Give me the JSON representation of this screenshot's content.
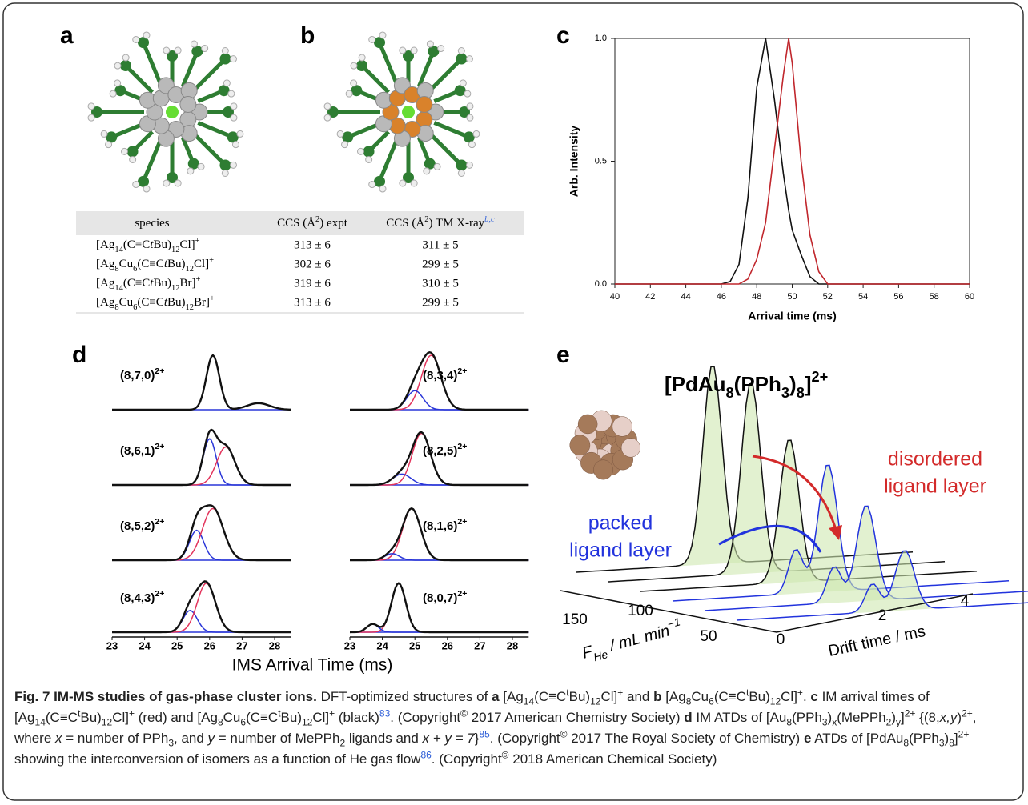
{
  "panel_labels": [
    "a",
    "b",
    "c",
    "d",
    "e"
  ],
  "table": {
    "header": [
      [
        {
          "t": "species"
        }
      ],
      [
        {
          "t": "CCS (Å"
        },
        {
          "t": "2",
          "f": "sup"
        },
        {
          "t": ") expt"
        }
      ],
      [
        {
          "t": "CCS (Å"
        },
        {
          "t": "2",
          "f": "sup"
        },
        {
          "t": ") TM X-ray"
        },
        {
          "t": "b,c",
          "f": "ref"
        }
      ]
    ],
    "rows": [
      {
        "species": [
          {
            "t": "[Ag"
          },
          {
            "t": "14",
            "f": "sub"
          },
          {
            "t": "(C≡C"
          },
          {
            "t": "t",
            "f": "i"
          },
          {
            "t": "Bu)"
          },
          {
            "t": "12",
            "f": "sub"
          },
          {
            "t": "Cl]"
          },
          {
            "t": "+",
            "f": "sup"
          }
        ],
        "expt": "313 ± 6",
        "xray": "311 ± 5"
      },
      {
        "species": [
          {
            "t": "[Ag"
          },
          {
            "t": "8",
            "f": "sub"
          },
          {
            "t": "Cu"
          },
          {
            "t": "6",
            "f": "sub"
          },
          {
            "t": "(C≡C"
          },
          {
            "t": "t",
            "f": "i"
          },
          {
            "t": "Bu)"
          },
          {
            "t": "12",
            "f": "sub"
          },
          {
            "t": "Cl]"
          },
          {
            "t": "+",
            "f": "sup"
          }
        ],
        "expt": "302 ± 6",
        "xray": "299 ± 5"
      },
      {
        "species": [
          {
            "t": "[Ag"
          },
          {
            "t": "14",
            "f": "sub"
          },
          {
            "t": "(C≡C"
          },
          {
            "t": "t",
            "f": "i"
          },
          {
            "t": "Bu)"
          },
          {
            "t": "12",
            "f": "sub"
          },
          {
            "t": "Br]"
          },
          {
            "t": "+",
            "f": "sup"
          }
        ],
        "expt": "319 ± 6",
        "xray": "310 ± 5"
      },
      {
        "species": [
          {
            "t": "[Ag"
          },
          {
            "t": "8",
            "f": "sub"
          },
          {
            "t": "Cu"
          },
          {
            "t": "6",
            "f": "sub"
          },
          {
            "t": "(C≡C"
          },
          {
            "t": "t",
            "f": "i"
          },
          {
            "t": "Bu)"
          },
          {
            "t": "12",
            "f": "sub"
          },
          {
            "t": "Br]"
          },
          {
            "t": "+",
            "f": "sup"
          }
        ],
        "expt": "313 ± 6",
        "xray": "299 ± 5"
      }
    ]
  },
  "chart_data": {
    "type": "line",
    "xlabel": "Arrival time (ms)",
    "ylabel": "Arb. Intensity",
    "x": [
      40,
      42,
      44,
      45,
      46,
      46.5,
      47,
      47.5,
      48,
      48.5,
      49,
      49.5,
      49.8,
      50,
      50.5,
      51,
      51.5,
      52,
      54,
      56,
      58,
      60
    ],
    "series": [
      {
        "color": "#111111",
        "values": [
          0,
          0,
          0,
          0,
          0,
          0.01,
          0.08,
          0.35,
          0.8,
          1.0,
          0.75,
          0.45,
          0.3,
          0.22,
          0.12,
          0.03,
          0,
          0,
          0,
          0,
          0,
          0
        ]
      },
      {
        "color": "#c0262c",
        "values": [
          0,
          0,
          0,
          0,
          0,
          0,
          0,
          0.02,
          0.1,
          0.25,
          0.55,
          0.85,
          1.0,
          0.9,
          0.5,
          0.2,
          0.05,
          0,
          0,
          0,
          0,
          0
        ]
      }
    ],
    "xlim": [
      40,
      60
    ],
    "ylim": [
      0,
      1
    ],
    "xticks": [
      40,
      42,
      44,
      46,
      48,
      50,
      52,
      54,
      56,
      58,
      60
    ],
    "yticks": [
      {
        "value": 0,
        "label": "0.0"
      },
      {
        "value": 0.5,
        "label": "0.5"
      },
      {
        "value": 1,
        "label": "1.0"
      }
    ]
  },
  "panel_d": {
    "xlabel": "IMS Arrival Time (ms)",
    "xlim": [
      23,
      28.5
    ],
    "xticks": [
      23,
      24,
      25,
      26,
      27,
      28
    ],
    "component_colors": {
      "red": "#e3345c",
      "blue": "#2a36d8",
      "sum": "#111111"
    },
    "plots": [
      {
        "label": [
          {
            "t": "(8,7,0)"
          },
          {
            "t": "2+",
            "f": "sup"
          }
        ],
        "peaks": [
          {
            "center": 26.1,
            "height": 1,
            "width": 0.2
          },
          {
            "center": 27.5,
            "height": 0.12,
            "width": 0.35
          }
        ]
      },
      {
        "label": [
          {
            "t": "(8,3,4)"
          },
          {
            "t": "2+",
            "f": "sup"
          }
        ],
        "peaks": [
          {
            "center": 25.5,
            "height": 1,
            "width": 0.3,
            "color": "red"
          },
          {
            "center": 25.0,
            "height": 0.35,
            "width": 0.25,
            "color": "blue"
          }
        ]
      },
      {
        "label": [
          {
            "t": "(8,6,1)"
          },
          {
            "t": "2+",
            "f": "sup"
          }
        ],
        "peaks": [
          {
            "center": 26.0,
            "height": 0.85,
            "width": 0.2,
            "color": "blue"
          },
          {
            "center": 26.5,
            "height": 0.7,
            "width": 0.28,
            "color": "red"
          }
        ]
      },
      {
        "label": [
          {
            "t": "(8,2,5)"
          },
          {
            "t": "2+",
            "f": "sup"
          }
        ],
        "peaks": [
          {
            "center": 25.2,
            "height": 0.95,
            "width": 0.28,
            "color": "red"
          },
          {
            "center": 24.6,
            "height": 0.2,
            "width": 0.28,
            "color": "blue"
          }
        ]
      },
      {
        "label": [
          {
            "t": "(8,5,2)"
          },
          {
            "t": "2+",
            "f": "sup"
          }
        ],
        "peaks": [
          {
            "center": 25.6,
            "height": 0.55,
            "width": 0.22,
            "color": "blue"
          },
          {
            "center": 26.1,
            "height": 0.95,
            "width": 0.32,
            "color": "red"
          }
        ]
      },
      {
        "label": [
          {
            "t": "(8,1,6)"
          },
          {
            "t": "2+",
            "f": "sup"
          }
        ],
        "peaks": [
          {
            "center": 24.9,
            "height": 0.95,
            "width": 0.28,
            "color": "red"
          },
          {
            "center": 24.3,
            "height": 0.12,
            "width": 0.22,
            "color": "blue"
          }
        ]
      },
      {
        "label": [
          {
            "t": "(8,4,3)"
          },
          {
            "t": "2+",
            "f": "sup"
          }
        ],
        "peaks": [
          {
            "center": 25.4,
            "height": 0.4,
            "width": 0.22,
            "color": "blue"
          },
          {
            "center": 25.9,
            "height": 0.9,
            "width": 0.28,
            "color": "red"
          }
        ]
      },
      {
        "label": [
          {
            "t": "(8,0,7)"
          },
          {
            "t": "2+",
            "f": "sup"
          }
        ],
        "peaks": [
          {
            "center": 24.5,
            "height": 0.9,
            "width": 0.22,
            "color": "red"
          },
          {
            "center": 23.7,
            "height": 0.15,
            "width": 0.18,
            "color": "blue"
          }
        ]
      }
    ]
  },
  "panel_e": {
    "title": [
      {
        "t": "[PdAu"
      },
      {
        "t": "8",
        "f": "sub"
      },
      {
        "t": "(PPh"
      },
      {
        "t": "3",
        "f": "sub"
      },
      {
        "t": ")"
      },
      {
        "t": "8",
        "f": "sub"
      },
      {
        "t": "]"
      },
      {
        "t": "2+",
        "f": "sup"
      }
    ],
    "disordered": [
      "disordered",
      "ligand layer"
    ],
    "packed": [
      "packed",
      "ligand layer"
    ],
    "flow_ticks": [
      "150",
      "100",
      "50"
    ],
    "flow_label": [
      {
        "t": "F"
      },
      {
        "t": "He",
        "f": "sub"
      },
      {
        "t": " / mL min"
      },
      {
        "t": "−1",
        "f": "sup"
      }
    ],
    "time_ticks": [
      "0",
      "2",
      "4"
    ],
    "time_label": "Drift time / ms"
  },
  "caption": [
    {
      "t": "Fig. 7 IM-MS studies of gas-phase cluster ions.",
      "f": "b"
    },
    {
      "t": " DFT-optimized structures of "
    },
    {
      "t": "a",
      "f": "b"
    },
    {
      "t": " [Ag"
    },
    {
      "t": "14",
      "f": "sub"
    },
    {
      "t": "(C≡C"
    },
    {
      "t": "t",
      "f": "sup"
    },
    {
      "t": "Bu)"
    },
    {
      "t": "12",
      "f": "sub"
    },
    {
      "t": "Cl]"
    },
    {
      "t": "+",
      "f": "sup"
    },
    {
      "t": " and "
    },
    {
      "t": "b",
      "f": "b"
    },
    {
      "t": " [Ag"
    },
    {
      "t": "8",
      "f": "sub"
    },
    {
      "t": "Cu"
    },
    {
      "t": "6",
      "f": "sub"
    },
    {
      "t": "(C≡C"
    },
    {
      "t": "t",
      "f": "sup"
    },
    {
      "t": "Bu)"
    },
    {
      "t": "12",
      "f": "sub"
    },
    {
      "t": "Cl]"
    },
    {
      "t": "+",
      "f": "sup"
    },
    {
      "t": ". "
    },
    {
      "t": "c",
      "f": "b"
    },
    {
      "t": " IM arrival times of [Ag"
    },
    {
      "t": "14",
      "f": "sub"
    },
    {
      "t": "(C≡C"
    },
    {
      "t": "t",
      "f": "sup"
    },
    {
      "t": "Bu)"
    },
    {
      "t": "12",
      "f": "sub"
    },
    {
      "t": "Cl]"
    },
    {
      "t": "+",
      "f": "sup"
    },
    {
      "t": " (red) and [Ag"
    },
    {
      "t": "8",
      "f": "sub"
    },
    {
      "t": "Cu"
    },
    {
      "t": "6",
      "f": "sub"
    },
    {
      "t": "(C≡C"
    },
    {
      "t": "t",
      "f": "sup"
    },
    {
      "t": "Bu)"
    },
    {
      "t": "12",
      "f": "sub"
    },
    {
      "t": "Cl]"
    },
    {
      "t": "+",
      "f": "sup"
    },
    {
      "t": " (black)"
    },
    {
      "t": "83",
      "f": "ref"
    },
    {
      "t": ". (Copyright"
    },
    {
      "t": "©",
      "f": "sup"
    },
    {
      "t": " 2017 American Chemistry Society) "
    },
    {
      "t": "d",
      "f": "b"
    },
    {
      "t": " IM ATDs of [Au"
    },
    {
      "t": "8",
      "f": "sub"
    },
    {
      "t": "(PPh"
    },
    {
      "t": "3",
      "f": "sub"
    },
    {
      "t": ")"
    },
    {
      "t": "x",
      "f": "sub"
    },
    {
      "t": "(MePPh"
    },
    {
      "t": "2",
      "f": "sub"
    },
    {
      "t": ")"
    },
    {
      "t": "y",
      "f": "sub"
    },
    {
      "t": "]"
    },
    {
      "t": "2+",
      "f": "sup"
    },
    {
      "t": " {(8,"
    },
    {
      "t": "x,y",
      "f": "i"
    },
    {
      "t": ")"
    },
    {
      "t": "2+",
      "f": "sup"
    },
    {
      "t": ", where "
    },
    {
      "t": "x",
      "f": "i"
    },
    {
      "t": " = number of PPh"
    },
    {
      "t": "3",
      "f": "sub"
    },
    {
      "t": ", and "
    },
    {
      "t": "y",
      "f": "i"
    },
    {
      "t": " = number of MePPh"
    },
    {
      "t": "2",
      "f": "sub"
    },
    {
      "t": " ligands and "
    },
    {
      "t": "x + y = 7",
      "f": "i"
    },
    {
      "t": "}"
    },
    {
      "t": "85",
      "f": "ref"
    },
    {
      "t": ". (Copyright"
    },
    {
      "t": "©",
      "f": "sup"
    },
    {
      "t": " 2017 The Royal Society of Chemistry) "
    },
    {
      "t": "e",
      "f": "b"
    },
    {
      "t": " ATDs of [PdAu"
    },
    {
      "t": "8",
      "f": "sub"
    },
    {
      "t": "(PPh"
    },
    {
      "t": "3",
      "f": "sub"
    },
    {
      "t": ")"
    },
    {
      "t": "8",
      "f": "sub"
    },
    {
      "t": "]"
    },
    {
      "t": "2+",
      "f": "sup"
    },
    {
      "t": " showing the interconversion of isomers as a function of He gas flow"
    },
    {
      "t": "86",
      "f": "ref"
    },
    {
      "t": ". (Copyright"
    },
    {
      "t": "©",
      "f": "sup"
    },
    {
      "t": " 2018 American Chemical Society)"
    }
  ]
}
